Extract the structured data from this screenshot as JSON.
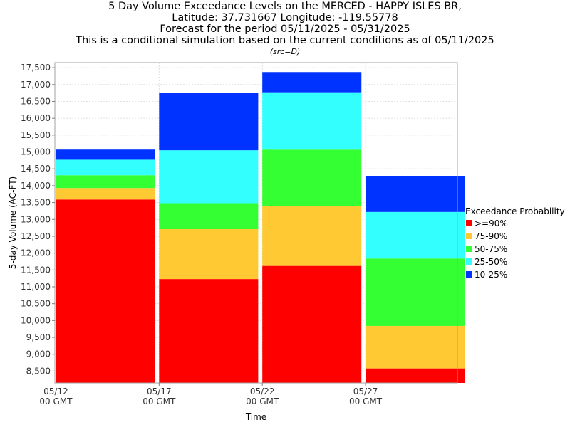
{
  "title_lines": [
    "5 Day Volume Exceedance Levels on the MERCED - HAPPY ISLES BR,",
    "Latitude: 37.731667 Longitude: -119.55778",
    "Forecast for the period 05/11/2025 - 05/31/2025",
    "This is a conditional simulation based on the current conditions as of 05/11/2025"
  ],
  "subtitle": "(src=D)",
  "chart_data": {
    "type": "bar",
    "stacked": true,
    "title": "5 Day Volume Exceedance Levels on the MERCED - HAPPY ISLES BR, Latitude: 37.731667 Longitude: -119.55778 Forecast for the period 05/11/2025 - 05/31/2025 This is a conditional simulation based on the current conditions as of 05/11/2025",
    "subtitle": "(src=D)",
    "xlabel": "Time",
    "ylabel": "5-day Volume (AC-FT)",
    "ylim": [
      8150,
      17650
    ],
    "yticks": [
      8500,
      9000,
      9500,
      10000,
      10500,
      11000,
      11500,
      12000,
      12500,
      13000,
      13500,
      14000,
      14500,
      15000,
      15500,
      16000,
      16500,
      17000,
      17500
    ],
    "ytick_labels": [
      "8,500",
      "9,000",
      "9,500",
      "10,000",
      "10,500",
      "11,000",
      "11,500",
      "12,000",
      "12,500",
      "13,000",
      "13,500",
      "14,000",
      "14,500",
      "15,000",
      "15,500",
      "16,000",
      "16,500",
      "17,000",
      "17,500"
    ],
    "xticks": [
      {
        "x": "05/12 00 GMT",
        "line1": "05/12",
        "line2": "00 GMT"
      },
      {
        "x": "05/17 00 GMT",
        "line1": "05/17",
        "line2": "00 GMT"
      },
      {
        "x": "05/22 00 GMT",
        "line1": "05/22",
        "line2": "00 GMT"
      },
      {
        "x": "05/27 00 GMT",
        "line1": "05/27",
        "line2": "00 GMT"
      }
    ],
    "x_domain_days": [
      11.95,
      31.45
    ],
    "grid": true,
    "legend_title": "Exceedance Probability",
    "legend_position": "right",
    "bars": [
      {
        "start_day": 12,
        "end_day": 16.8,
        "levels": [
          13590,
          13930,
          14310,
          14770,
          15070
        ]
      },
      {
        "start_day": 17,
        "end_day": 21.8,
        "levels": [
          11230,
          12710,
          13480,
          15050,
          16750
        ]
      },
      {
        "start_day": 22,
        "end_day": 26.8,
        "levels": [
          11620,
          13390,
          15070,
          16770,
          17370
        ]
      },
      {
        "start_day": 27,
        "end_day": 31.8,
        "levels": [
          8580,
          9840,
          11840,
          13220,
          14290
        ]
      }
    ],
    "series": [
      {
        "name": ">=90%",
        "color": "#ff0000"
      },
      {
        "name": "75-90%",
        "color": "#ffc933"
      },
      {
        "name": "50-75%",
        "color": "#33ff33"
      },
      {
        "name": "25-50%",
        "color": "#33ffff"
      },
      {
        "name": "10-25%",
        "color": "#0033ff"
      }
    ]
  }
}
